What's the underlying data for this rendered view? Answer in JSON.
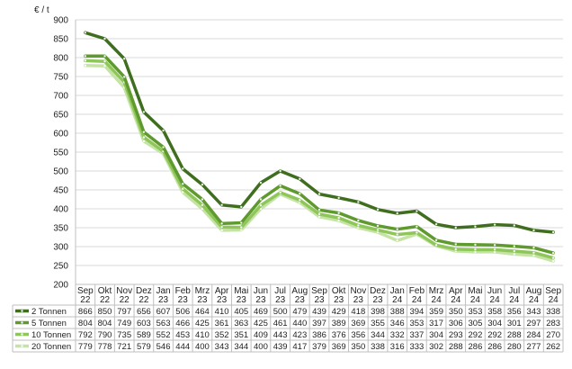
{
  "chart_data": {
    "type": "line",
    "yunit": "€ / t",
    "ylim": [
      200,
      900
    ],
    "ystep": 50,
    "grid": true,
    "legend": "data-table-bottom",
    "categories": [
      [
        "Sep",
        "22"
      ],
      [
        "Okt",
        "22"
      ],
      [
        "Nov",
        "22"
      ],
      [
        "Dez",
        "22"
      ],
      [
        "Jan",
        "23"
      ],
      [
        "Feb",
        "23"
      ],
      [
        "Mrz",
        "23"
      ],
      [
        "Apr",
        "23"
      ],
      [
        "Mai",
        "23"
      ],
      [
        "Jun",
        "23"
      ],
      [
        "Jul",
        "23"
      ],
      [
        "Aug",
        "23"
      ],
      [
        "Sep",
        "23"
      ],
      [
        "Okt",
        "23"
      ],
      [
        "Nov",
        "23"
      ],
      [
        "Dez",
        "23"
      ],
      [
        "Jan",
        "24"
      ],
      [
        "Feb",
        "24"
      ],
      [
        "Mrz",
        "24"
      ],
      [
        "Apr",
        "24"
      ],
      [
        "Mai",
        "24"
      ],
      [
        "Jun",
        "24"
      ],
      [
        "Jul",
        "24"
      ],
      [
        "Aug",
        "24"
      ],
      [
        "Sep",
        "24"
      ]
    ],
    "series": [
      {
        "name": "2 Tonnen",
        "color": "#3f6e1e",
        "values": [
          866,
          850,
          797,
          656,
          607,
          506,
          464,
          410,
          405,
          469,
          500,
          479,
          439,
          429,
          418,
          398,
          388,
          394,
          359,
          350,
          353,
          358,
          356,
          343,
          338
        ]
      },
      {
        "name": "5 Tonnen",
        "color": "#5f9a2e",
        "values": [
          804,
          804,
          749,
          603,
          563,
          466,
          425,
          361,
          363,
          425,
          461,
          440,
          397,
          389,
          369,
          355,
          346,
          353,
          317,
          306,
          305,
          304,
          301,
          297,
          283
        ]
      },
      {
        "name": "10 Tonnen",
        "color": "#8fc65a",
        "values": [
          792,
          790,
          735,
          589,
          552,
          453,
          410,
          352,
          351,
          409,
          443,
          423,
          386,
          376,
          356,
          344,
          332,
          337,
          304,
          293,
          292,
          292,
          288,
          284,
          270
        ]
      },
      {
        "name": "20 Tonnen",
        "color": "#c5e3a5",
        "values": [
          779,
          778,
          721,
          579,
          546,
          444,
          400,
          343,
          344,
          400,
          439,
          417,
          379,
          369,
          350,
          338,
          316,
          333,
          302,
          288,
          286,
          286,
          280,
          277,
          262
        ]
      }
    ]
  }
}
